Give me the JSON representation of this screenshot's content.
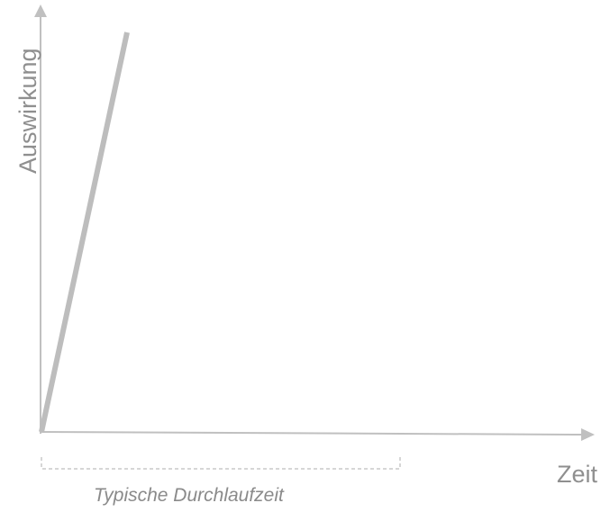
{
  "diagram": {
    "y_axis_label": "Auswirkung",
    "x_axis_label": "Zeit",
    "bracket_label": "Typische Durchlaufzeit"
  },
  "colors": {
    "axis": "#c0c0c0",
    "line": "#bdbdbd",
    "bracket": "#c8c8c8",
    "text": "#8f8f8f"
  }
}
